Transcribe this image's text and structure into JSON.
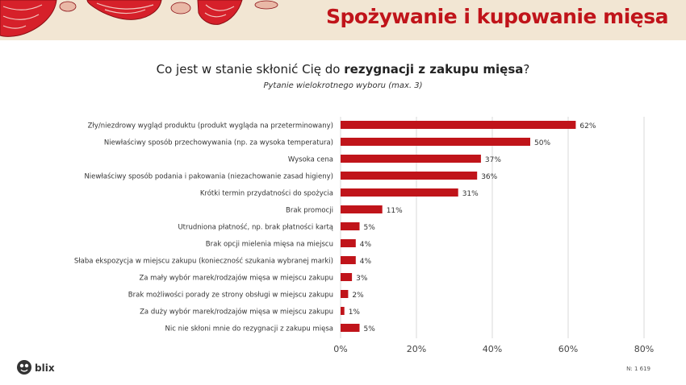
{
  "header": {
    "title": "Spożywanie i kupowanie mięsa"
  },
  "question": {
    "prefix": "Co jest w stanie skłonić Cię do ",
    "emphasis": "rezygnacji z zakupu mięsa",
    "suffix": "?"
  },
  "subtitle": "Pytanie wielokrotnego wyboru (max. 3)",
  "chart_data": {
    "type": "bar",
    "orientation": "horizontal",
    "categories": [
      "Zły/niezdrowy wygląd produktu (produkt wygląda na przeterminowany)",
      "Niewłaściwy sposób przechowywania (np. za wysoka temperatura)",
      "Wysoka cena",
      "Niewłaściwy sposób podania i pakowania (niezachowanie zasad higieny)",
      "Krótki termin przydatności do spożycia",
      "Brak promocji",
      "Utrudniona płatność, np. brak płatności kartą",
      "Brak opcji mielenia mięsa na miejscu",
      "Słaba ekspozycja w miejscu zakupu (konieczność szukania wybranej marki)",
      "Za mały wybór marek/rodzajów mięsa w miejscu zakupu",
      "Brak możliwości porady ze strony obsługi w miejscu zakupu",
      "Za duży wybór marek/rodzajów mięsa w miejscu zakupu",
      "Nic nie skłoni mnie do rezygnacji z zakupu mięsa"
    ],
    "values": [
      62,
      50,
      37,
      36,
      31,
      11,
      5,
      4,
      4,
      3,
      2,
      1,
      5
    ],
    "value_labels": [
      "62%",
      "50%",
      "37%",
      "36%",
      "31%",
      "11%",
      "5%",
      "4%",
      "4%",
      "3%",
      "2%",
      "1%",
      "5%"
    ],
    "xlim": [
      0,
      80
    ],
    "ticks": [
      0,
      20,
      40,
      60,
      80
    ],
    "tick_labels": [
      "0%",
      "20%",
      "40%",
      "60%",
      "80%"
    ],
    "grid": true,
    "bar_color": "#c0141a"
  },
  "footer": {
    "logo_text": "blix",
    "sample": "N: 1 619"
  }
}
